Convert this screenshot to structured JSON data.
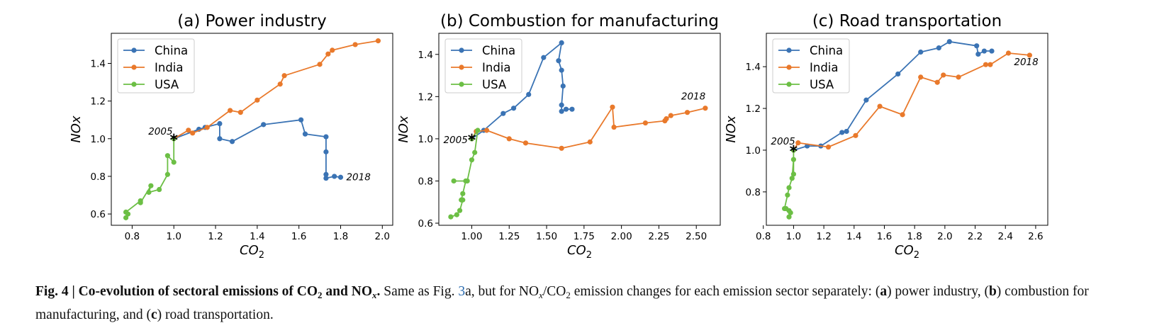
{
  "colors": {
    "China": "#3a73b4",
    "India": "#e9792b",
    "USA": "#6cbf45",
    "marker_2005": "#000000"
  },
  "panels": [
    {
      "title": "(a) Power industry",
      "xlabel": "CO",
      "xlabel_sub": "2",
      "ylabel": "NOx",
      "xlim": [
        0.7,
        2.05
      ],
      "ylim": [
        0.54,
        1.56
      ],
      "xticks": [
        "0.8",
        "1.0",
        "1.2",
        "1.4",
        "1.6",
        "1.8",
        "2.0"
      ],
      "yticks": [
        "0.6",
        "0.8",
        "1.0",
        "1.2",
        "1.4"
      ],
      "legend": [
        "China",
        "India",
        "USA"
      ],
      "annotations": {
        "start": "2005",
        "end": "2018"
      }
    },
    {
      "title": "(b) Combustion for manufacturing",
      "xlabel": "CO",
      "xlabel_sub": "2",
      "ylabel": "NOx",
      "xlim": [
        0.78,
        2.66
      ],
      "ylim": [
        0.59,
        1.5
      ],
      "xticks": [
        "1.00",
        "1.25",
        "1.50",
        "1.75",
        "2.00",
        "2.25",
        "2.50"
      ],
      "yticks": [
        "0.6",
        "0.8",
        "1.0",
        "1.2",
        "1.4"
      ],
      "legend": [
        "China",
        "India",
        "USA"
      ],
      "annotations": {
        "start": "2005",
        "end": "2018"
      }
    },
    {
      "title": "(c) Road transportation",
      "xlabel": "CO",
      "xlabel_sub": "2",
      "ylabel": "NOx",
      "xlim": [
        0.82,
        2.68
      ],
      "ylim": [
        0.64,
        1.56
      ],
      "xticks": [
        "0.8",
        "1.0",
        "1.2",
        "1.4",
        "1.6",
        "1.8",
        "2.0",
        "2.2",
        "2.4",
        "2.6"
      ],
      "yticks": [
        "0.8",
        "1.0",
        "1.2",
        "1.4"
      ],
      "legend": [
        "China",
        "India",
        "USA"
      ],
      "annotations": {
        "start": "2005",
        "end": "2018"
      }
    }
  ],
  "chart_data": [
    {
      "type": "line",
      "title": "(a) Power industry",
      "xlabel": "CO2",
      "ylabel": "NOx",
      "xlim": [
        0.7,
        2.05
      ],
      "ylim": [
        0.54,
        1.56
      ],
      "series": [
        {
          "name": "China",
          "x": [
            1.0,
            1.12,
            1.15,
            1.22,
            1.22,
            1.28,
            1.43,
            1.61,
            1.63,
            1.73,
            1.73,
            1.73,
            1.73,
            1.77,
            1.8
          ],
          "y": [
            1.0,
            1.05,
            1.06,
            1.08,
            1.0,
            0.985,
            1.075,
            1.1,
            1.025,
            1.01,
            0.93,
            0.81,
            0.79,
            0.8,
            0.795
          ]
        },
        {
          "name": "India",
          "x": [
            1.0,
            1.07,
            1.09,
            1.16,
            1.27,
            1.32,
            1.4,
            1.51,
            1.53,
            1.7,
            1.74,
            1.76,
            1.87,
            1.98
          ],
          "y": [
            1.0,
            1.045,
            1.03,
            1.06,
            1.15,
            1.14,
            1.205,
            1.29,
            1.335,
            1.395,
            1.45,
            1.47,
            1.5,
            1.52
          ]
        },
        {
          "name": "USA",
          "x": [
            1.0,
            1.0,
            0.97,
            0.97,
            0.93,
            0.88,
            0.89,
            0.84,
            0.84,
            0.77,
            0.78,
            0.77
          ],
          "y": [
            1.0,
            0.875,
            0.91,
            0.81,
            0.73,
            0.715,
            0.75,
            0.66,
            0.67,
            0.61,
            0.6,
            0.58
          ]
        }
      ],
      "annotations": [
        "2005",
        "2018"
      ]
    },
    {
      "type": "line",
      "title": "(b) Combustion for manufacturing",
      "xlabel": "CO2",
      "ylabel": "NOx",
      "xlim": [
        0.78,
        2.66
      ],
      "ylim": [
        0.59,
        1.5
      ],
      "series": [
        {
          "name": "China",
          "x": [
            1.0,
            1.08,
            1.21,
            1.28,
            1.38,
            1.48,
            1.6,
            1.58,
            1.6,
            1.61,
            1.6,
            1.6,
            1.63,
            1.67
          ],
          "y": [
            1.0,
            1.04,
            1.12,
            1.145,
            1.21,
            1.385,
            1.455,
            1.37,
            1.325,
            1.25,
            1.16,
            1.13,
            1.14,
            1.14
          ]
        },
        {
          "name": "India",
          "x": [
            1.0,
            1.03,
            1.1,
            1.25,
            1.36,
            1.6,
            1.79,
            1.94,
            1.95,
            2.16,
            2.29,
            2.3,
            2.33,
            2.44,
            2.56
          ],
          "y": [
            1.0,
            1.035,
            1.04,
            1.0,
            0.98,
            0.955,
            0.985,
            1.15,
            1.055,
            1.075,
            1.085,
            1.095,
            1.11,
            1.125,
            1.145
          ]
        },
        {
          "name": "USA",
          "x": [
            1.0,
            1.04,
            1.02,
            1.0,
            0.97,
            0.88,
            0.96,
            0.94,
            0.93,
            0.94,
            0.92,
            0.9,
            0.86
          ],
          "y": [
            1.0,
            1.04,
            0.935,
            0.9,
            0.8,
            0.8,
            0.8,
            0.74,
            0.71,
            0.71,
            0.66,
            0.64,
            0.63
          ]
        }
      ],
      "annotations": [
        "2005",
        "2018"
      ]
    },
    {
      "type": "line",
      "title": "(c) Road transportation",
      "xlabel": "CO2",
      "ylabel": "NOx",
      "xlim": [
        0.82,
        2.68
      ],
      "ylim": [
        0.64,
        1.56
      ],
      "series": [
        {
          "name": "China",
          "x": [
            1.0,
            1.09,
            1.18,
            1.32,
            1.35,
            1.48,
            1.69,
            1.84,
            1.96,
            2.03,
            2.21,
            2.22,
            2.26,
            2.31
          ],
          "y": [
            1.0,
            1.02,
            1.02,
            1.085,
            1.09,
            1.24,
            1.365,
            1.47,
            1.49,
            1.52,
            1.5,
            1.46,
            1.475,
            1.475
          ]
        },
        {
          "name": "India",
          "x": [
            1.0,
            1.03,
            1.23,
            1.41,
            1.57,
            1.72,
            1.84,
            1.95,
            1.99,
            2.09,
            2.27,
            2.3,
            2.42,
            2.56
          ],
          "y": [
            1.0,
            1.035,
            1.015,
            1.07,
            1.21,
            1.17,
            1.35,
            1.325,
            1.36,
            1.35,
            1.41,
            1.41,
            1.465,
            1.455
          ]
        },
        {
          "name": "USA",
          "x": [
            1.0,
            1.0,
            1.0,
            0.99,
            0.97,
            0.96,
            0.94,
            0.95,
            0.97,
            0.98,
            0.97
          ],
          "y": [
            1.0,
            0.885,
            0.955,
            0.865,
            0.82,
            0.785,
            0.72,
            0.72,
            0.71,
            0.7,
            0.68
          ]
        }
      ],
      "annotations": [
        "2005",
        "2018"
      ]
    }
  ],
  "caption": {
    "title_prefix": "Fig. 4 | Co-evolution of sectoral emissions of CO",
    "title_sub1": "2",
    "title_mid": " and NO",
    "title_sub2": "x",
    "title_end": ".",
    "text_a": " Same as Fig. ",
    "ref": "3",
    "text_b": "a, but for NO",
    "text_sub_x": "x",
    "text_c": "/CO",
    "text_sub_2": "2",
    "text_d": " emission changes for each emission sector separately: (",
    "lbl_a": "a",
    "text_e": ") power industry, (",
    "lbl_b": "b",
    "text_f": ") combustion for manufacturing, and (",
    "lbl_c": "c",
    "text_g": ") road transportation."
  }
}
